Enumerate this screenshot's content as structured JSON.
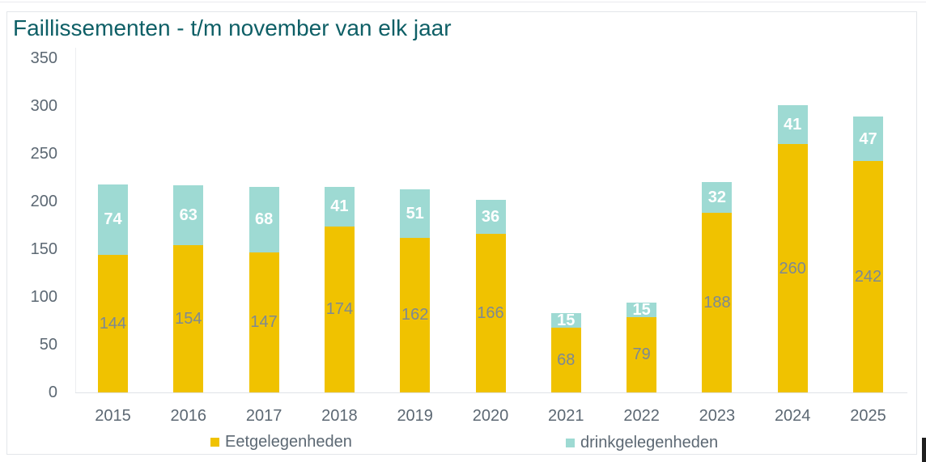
{
  "chart_data": {
    "type": "bar",
    "stacked": true,
    "title": "Faillissementen - t/m november van elk jaar",
    "categories": [
      "2015",
      "2016",
      "2017",
      "2018",
      "2019",
      "2020",
      "2021",
      "2022",
      "2023",
      "2024",
      "2025"
    ],
    "series": [
      {
        "name": "Eetgelegenheden",
        "color": "#F0C200",
        "label_color": "#7D8994",
        "values": [
          144,
          154,
          147,
          174,
          162,
          166,
          68,
          79,
          188,
          260,
          242
        ]
      },
      {
        "name": "drinkgelegenheden",
        "color": "#9EDAD3",
        "label_color": "#FFFFFF",
        "values": [
          74,
          63,
          68,
          41,
          51,
          36,
          15,
          15,
          32,
          41,
          47
        ]
      }
    ],
    "xlabel": "",
    "ylabel": "",
    "ylim": [
      0,
      350
    ],
    "y_ticks": [
      0,
      50,
      100,
      150,
      200,
      250,
      300,
      350
    ],
    "grid": false,
    "legend_position": "bottom",
    "data_labels": true
  },
  "colors": {
    "title_teal": "#0E5F66",
    "axis_text": "#5C6873",
    "bar_label_gray": "#7D8994",
    "bar_label_white": "#FFFFFF",
    "panel_border": "#E3E6EA",
    "axis_line": "#DFE3E7"
  }
}
